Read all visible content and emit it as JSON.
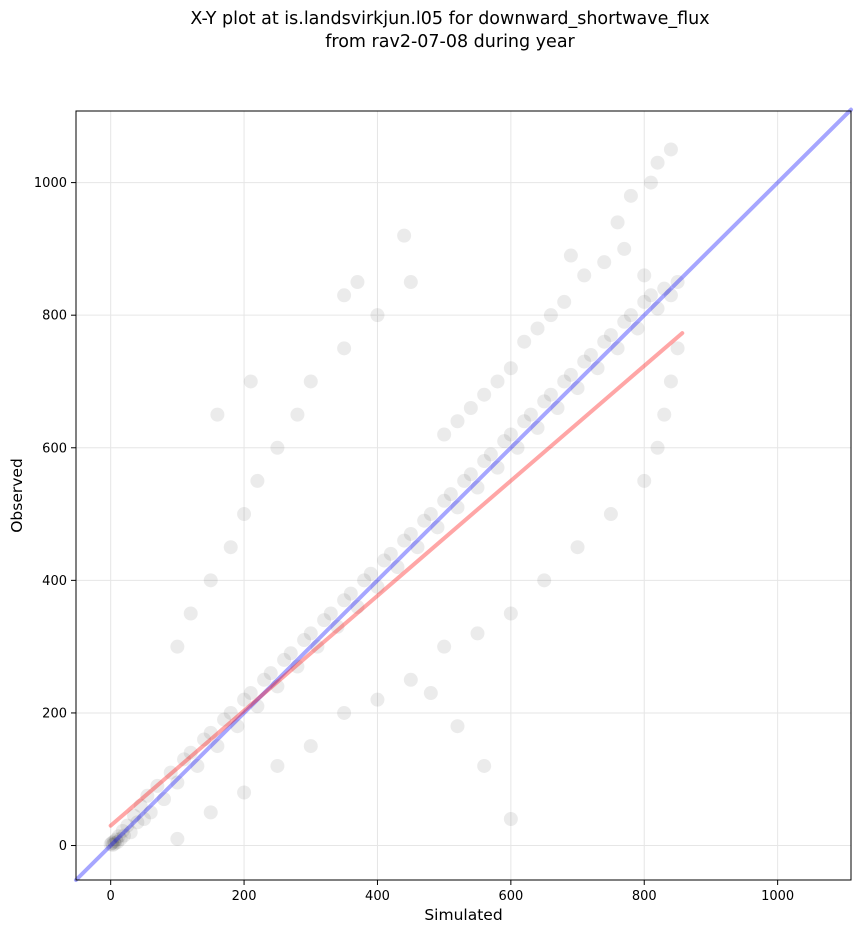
{
  "chart_data": {
    "type": "scatter",
    "title": [
      "X-Y plot at is.landsvirkjun.l05 for downward_shortwave_flux",
      "from rav2-07-08 during year"
    ],
    "xlabel": "Simulated",
    "ylabel": "Observed",
    "xlim": [
      -52,
      1110
    ],
    "ylim": [
      -52,
      1108
    ],
    "xticks": [
      0,
      200,
      400,
      600,
      800,
      1000
    ],
    "yticks": [
      0,
      200,
      400,
      600,
      800,
      1000
    ],
    "grid": true,
    "marker_color": "#000000",
    "marker_alpha": 0.08,
    "lines": [
      {
        "role": "identity",
        "color": "#0000ff",
        "x": [
          -52,
          1110
        ],
        "y": [
          -52,
          1110
        ]
      },
      {
        "role": "regression",
        "color": "#ff0000",
        "x": [
          0,
          857
        ],
        "y": [
          30,
          773
        ]
      }
    ],
    "points": [
      [
        0,
        2
      ],
      [
        2,
        4
      ],
      [
        3,
        1
      ],
      [
        5,
        6
      ],
      [
        6,
        3
      ],
      [
        8,
        9
      ],
      [
        10,
        5
      ],
      [
        12,
        14
      ],
      [
        15,
        10
      ],
      [
        18,
        22
      ],
      [
        20,
        15
      ],
      [
        25,
        30
      ],
      [
        30,
        20
      ],
      [
        35,
        45
      ],
      [
        40,
        35
      ],
      [
        45,
        60
      ],
      [
        50,
        40
      ],
      [
        55,
        75
      ],
      [
        60,
        50
      ],
      [
        70,
        90
      ],
      [
        80,
        70
      ],
      [
        90,
        110
      ],
      [
        100,
        95
      ],
      [
        110,
        130
      ],
      [
        120,
        140
      ],
      [
        130,
        120
      ],
      [
        140,
        160
      ],
      [
        150,
        170
      ],
      [
        160,
        150
      ],
      [
        170,
        190
      ],
      [
        180,
        200
      ],
      [
        190,
        180
      ],
      [
        200,
        220
      ],
      [
        210,
        230
      ],
      [
        220,
        210
      ],
      [
        230,
        250
      ],
      [
        240,
        260
      ],
      [
        250,
        240
      ],
      [
        260,
        280
      ],
      [
        270,
        290
      ],
      [
        280,
        270
      ],
      [
        290,
        310
      ],
      [
        300,
        320
      ],
      [
        310,
        300
      ],
      [
        320,
        340
      ],
      [
        330,
        350
      ],
      [
        340,
        330
      ],
      [
        350,
        370
      ],
      [
        360,
        380
      ],
      [
        370,
        360
      ],
      [
        380,
        400
      ],
      [
        390,
        410
      ],
      [
        400,
        390
      ],
      [
        410,
        430
      ],
      [
        420,
        440
      ],
      [
        430,
        420
      ],
      [
        440,
        460
      ],
      [
        450,
        470
      ],
      [
        460,
        450
      ],
      [
        470,
        490
      ],
      [
        480,
        500
      ],
      [
        490,
        480
      ],
      [
        500,
        520
      ],
      [
        510,
        530
      ],
      [
        520,
        510
      ],
      [
        530,
        550
      ],
      [
        540,
        560
      ],
      [
        550,
        540
      ],
      [
        560,
        580
      ],
      [
        570,
        590
      ],
      [
        580,
        570
      ],
      [
        590,
        610
      ],
      [
        600,
        620
      ],
      [
        610,
        600
      ],
      [
        620,
        640
      ],
      [
        630,
        650
      ],
      [
        640,
        630
      ],
      [
        650,
        670
      ],
      [
        660,
        680
      ],
      [
        670,
        660
      ],
      [
        680,
        700
      ],
      [
        690,
        710
      ],
      [
        700,
        690
      ],
      [
        710,
        730
      ],
      [
        720,
        740
      ],
      [
        730,
        720
      ],
      [
        740,
        760
      ],
      [
        750,
        770
      ],
      [
        760,
        750
      ],
      [
        770,
        790
      ],
      [
        780,
        800
      ],
      [
        790,
        780
      ],
      [
        800,
        820
      ],
      [
        810,
        830
      ],
      [
        820,
        810
      ],
      [
        830,
        840
      ],
      [
        840,
        830
      ],
      [
        850,
        850
      ],
      [
        100,
        300
      ],
      [
        120,
        350
      ],
      [
        150,
        400
      ],
      [
        180,
        450
      ],
      [
        200,
        500
      ],
      [
        220,
        550
      ],
      [
        250,
        600
      ],
      [
        280,
        650
      ],
      [
        300,
        700
      ],
      [
        350,
        750
      ],
      [
        400,
        800
      ],
      [
        450,
        850
      ],
      [
        440,
        920
      ],
      [
        350,
        830
      ],
      [
        370,
        850
      ],
      [
        100,
        10
      ],
      [
        150,
        50
      ],
      [
        200,
        80
      ],
      [
        250,
        120
      ],
      [
        300,
        150
      ],
      [
        350,
        200
      ],
      [
        400,
        220
      ],
      [
        450,
        250
      ],
      [
        500,
        300
      ],
      [
        550,
        320
      ],
      [
        600,
        350
      ],
      [
        650,
        400
      ],
      [
        700,
        450
      ],
      [
        750,
        500
      ],
      [
        800,
        550
      ],
      [
        820,
        600
      ],
      [
        830,
        650
      ],
      [
        840,
        700
      ],
      [
        850,
        750
      ],
      [
        600,
        40
      ],
      [
        560,
        120
      ],
      [
        520,
        180
      ],
      [
        480,
        230
      ],
      [
        160,
        650
      ],
      [
        210,
        700
      ],
      [
        820,
        1030
      ],
      [
        840,
        1050
      ],
      [
        810,
        1000
      ],
      [
        780,
        980
      ],
      [
        760,
        940
      ],
      [
        690,
        890
      ],
      [
        710,
        860
      ],
      [
        740,
        880
      ],
      [
        770,
        900
      ],
      [
        800,
        860
      ],
      [
        680,
        820
      ],
      [
        660,
        800
      ],
      [
        640,
        780
      ],
      [
        620,
        760
      ],
      [
        600,
        720
      ],
      [
        580,
        700
      ],
      [
        560,
        680
      ],
      [
        540,
        660
      ],
      [
        520,
        640
      ],
      [
        500,
        620
      ]
    ]
  }
}
